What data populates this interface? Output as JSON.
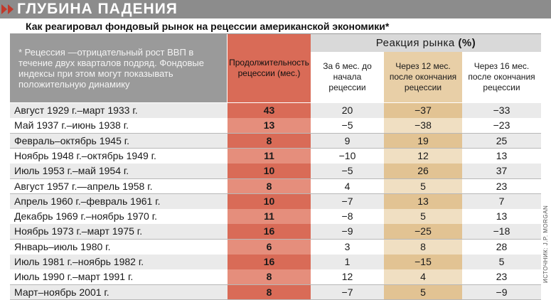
{
  "header": {
    "title": "ГЛУБИНА ПАДЕНИЯ",
    "subtitle": "Как реагировал фондовый рынок на рецессии американской экономики*"
  },
  "note": "* Рецессия —отрицательный рост ВВП в течение двух кварталов подряд. Фондовые индексы при этом могут показывать положительную динамику",
  "columns": {
    "duration": "Продолжительность рецессии (мес.)",
    "reaction_label": "Реакция рынка",
    "reaction_unit": "(%)",
    "before": "За 6 мес. до начала рецессии",
    "after12": "Через 12 мес. после окончания рецессии",
    "after16": "Через 16 мес. после окончания рецессии"
  },
  "rows": [
    {
      "period": "Август 1929 г.–март 1933 г.",
      "duration": "43",
      "before": "20",
      "after12": "−37",
      "after16": "−33"
    },
    {
      "period": "Май 1937 г.–июнь 1938 г.",
      "duration": "13",
      "before": "−5",
      "after12": "−38",
      "after16": "−23"
    },
    {
      "period": "Февраль–октябрь 1945 г.",
      "duration": "8",
      "before": "9",
      "after12": "19",
      "after16": "25"
    },
    {
      "period": "Ноябрь 1948 г.–октябрь 1949 г.",
      "duration": "11",
      "before": "−10",
      "after12": "12",
      "after16": "13"
    },
    {
      "period": "Июль 1953 г.–май 1954 г.",
      "duration": "10",
      "before": "−5",
      "after12": "26",
      "after16": "37"
    },
    {
      "period": "Август 1957 г.—апрель 1958 г.",
      "duration": "8",
      "before": "4",
      "after12": "5",
      "after16": "23"
    },
    {
      "period": "Апрель 1960 г.–февраль 1961 г.",
      "duration": "10",
      "before": "−7",
      "after12": "13",
      "after16": "7"
    },
    {
      "period": "Декабрь 1969 г.–ноябрь 1970 г.",
      "duration": "11",
      "before": "−8",
      "after12": "5",
      "after16": "13"
    },
    {
      "period": "Ноябрь 1973 г.–март 1975 г.",
      "duration": "16",
      "before": "−9",
      "after12": "−25",
      "after16": "−18"
    },
    {
      "period": "Январь–июль 1980 г.",
      "duration": "6",
      "before": "3",
      "after12": "8",
      "after16": "28"
    },
    {
      "period": "Июль 1981 г.–ноябрь 1982 г.",
      "duration": "16",
      "before": "1",
      "after12": "−15",
      "after16": "5"
    },
    {
      "period": "Июль 1990 г.–март 1991 г.",
      "duration": "8",
      "before": "12",
      "after12": "4",
      "after16": "23"
    },
    {
      "period": "Март–ноябрь 2001 г.",
      "duration": "8",
      "before": "−7",
      "after12": "5",
      "after16": "−9"
    }
  ],
  "source": "ИСТОЧНИК: J.P. MORGAN",
  "colors": {
    "title_bar": "#8c8c8c",
    "accent_red": "#c0392b",
    "duration_column": "#d96b57",
    "after12_column": "#e2c393"
  }
}
